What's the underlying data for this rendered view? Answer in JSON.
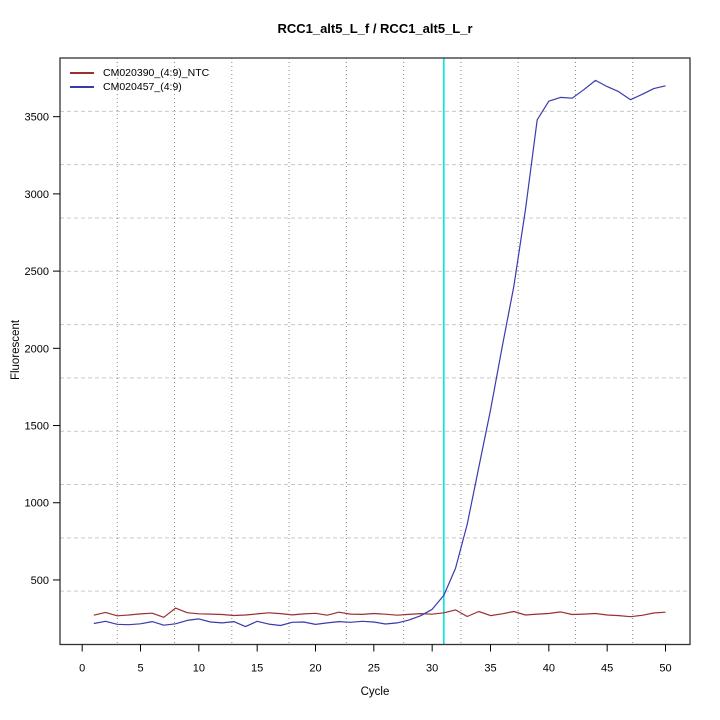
{
  "figure": {
    "title": "RCC1_alt5_L_f / RCC1_alt5_L_r",
    "xlabel": "Cycle",
    "ylabel": "Fluorescent"
  },
  "legend": {
    "items": [
      {
        "label": "CM020390_(4:9)_NTC",
        "color": "#9a3030"
      },
      {
        "label": "CM020457_(4:9)",
        "color": "#3a3aac"
      }
    ]
  },
  "chart_data": {
    "type": "line",
    "title": "RCC1_alt5_L_f / RCC1_alt5_L_r",
    "xlabel": "Cycle",
    "ylabel": "Fluorescent",
    "x": [
      1,
      2,
      3,
      4,
      5,
      6,
      7,
      8,
      9,
      10,
      11,
      12,
      13,
      14,
      15,
      16,
      17,
      18,
      19,
      20,
      21,
      22,
      23,
      24,
      25,
      26,
      27,
      28,
      29,
      30,
      31,
      32,
      33,
      34,
      35,
      36,
      37,
      38,
      39,
      40,
      41,
      42,
      43,
      44,
      45,
      46,
      47,
      48,
      49,
      50
    ],
    "series": [
      {
        "name": "CM020390_(4:9)_NTC",
        "color": "#9a3030",
        "values": [
          272,
          290,
          268,
          273,
          280,
          285,
          258,
          318,
          288,
          281,
          279,
          276,
          270,
          273,
          280,
          287,
          282,
          274,
          280,
          284,
          272,
          291,
          279,
          277,
          283,
          278,
          272,
          277,
          282,
          278,
          287,
          306,
          263,
          296,
          269,
          281,
          296,
          273,
          279,
          283,
          293,
          276,
          279,
          283,
          273,
          269,
          262,
          271,
          286,
          291
        ]
      },
      {
        "name": "CM020457_(4:9)",
        "color": "#3a3aac",
        "values": [
          218,
          232,
          213,
          210,
          216,
          230,
          207,
          216,
          238,
          248,
          228,
          222,
          230,
          198,
          232,
          214,
          205,
          226,
          228,
          212,
          222,
          230,
          226,
          232,
          228,
          215,
          222,
          240,
          268,
          310,
          400,
          575,
          860,
          1230,
          1600,
          2010,
          2400,
          2900,
          3480,
          3600,
          3625,
          3620,
          3675,
          3735,
          3695,
          3662,
          3610,
          3645,
          3682,
          3700
        ]
      }
    ],
    "xticks": [
      0,
      5,
      10,
      15,
      20,
      25,
      30,
      35,
      40,
      45,
      50
    ],
    "yticks": [
      500,
      1000,
      1500,
      2000,
      2500,
      3000,
      3500
    ],
    "xlim": [
      -1.9,
      52.1
    ],
    "ylim": [
      82,
      3880
    ],
    "grid": {
      "nx": 11,
      "ny": 11,
      "vertical_style": "dotted",
      "horizontal_style": "dashed"
    },
    "marker_line": {
      "orientation": "vertical",
      "x": 31,
      "color": "#00e6e6"
    },
    "legend_position": "top-left",
    "colors": {
      "background": "#ffffff",
      "box": "#333333",
      "vertical_grid": "#888888",
      "horizontal_grid": "#c9c9c9",
      "tick_text": "#000000"
    }
  }
}
